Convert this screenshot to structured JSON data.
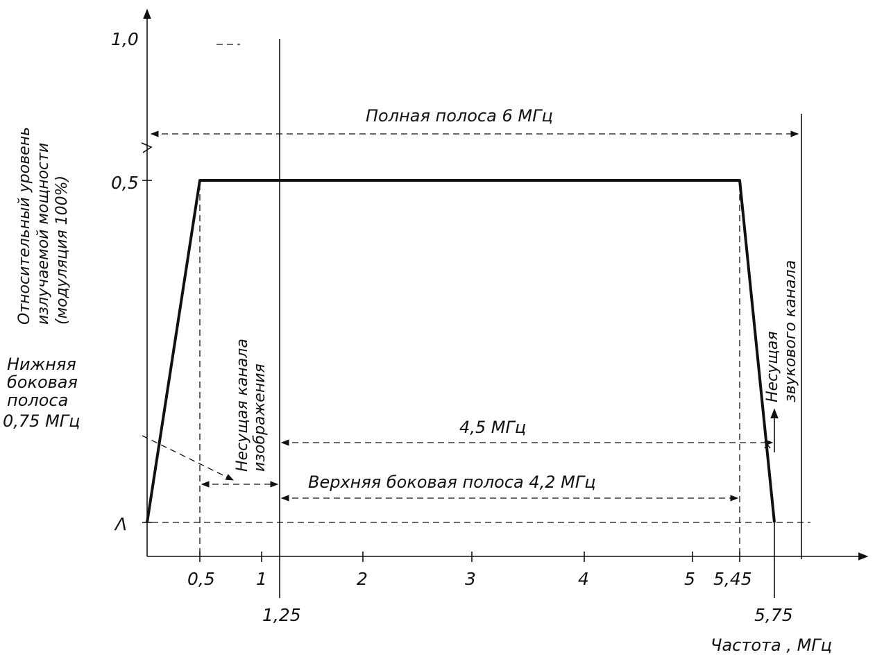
{
  "diagram": {
    "y_axis": {
      "label_lines": [
        "Относительный уровень",
        "излучаемой мощности",
        "(модуляция 100%)"
      ],
      "ticks": [
        "1,0",
        "0,5",
        "Λ"
      ]
    },
    "x_axis": {
      "label": "Частота , МГц",
      "ticks": [
        "0,5",
        "1",
        "2",
        "3",
        "4",
        "5",
        "5,45"
      ],
      "ticks_below": [
        "1,25",
        "5,75"
      ]
    },
    "annotations": {
      "full_band": "Полная полоса 6 МГц",
      "lower_sideband_lines": [
        "Нижняя",
        "боковая",
        "полоса",
        "0,75 МГц"
      ],
      "picture_carrier_lines": [
        "Несущая канала",
        "изображения"
      ],
      "sound_carrier_lines": [
        "Несущая",
        "звукового канала"
      ],
      "spacing_4_5": "4,5 МГц",
      "upper_sideband": "Верхняя боковая полоса 4,2 МГц"
    }
  },
  "chart_data": {
    "type": "line",
    "xlabel": "Частота , МГц",
    "ylabel": "Относительный уровень излучаемой мощности (модуляция 100%)",
    "x": [
      0,
      0.5,
      5.45,
      5.75
    ],
    "y": [
      0,
      0.5,
      0.5,
      0
    ],
    "xlim": [
      0,
      6
    ],
    "ylim": [
      0,
      1.0
    ]
  }
}
